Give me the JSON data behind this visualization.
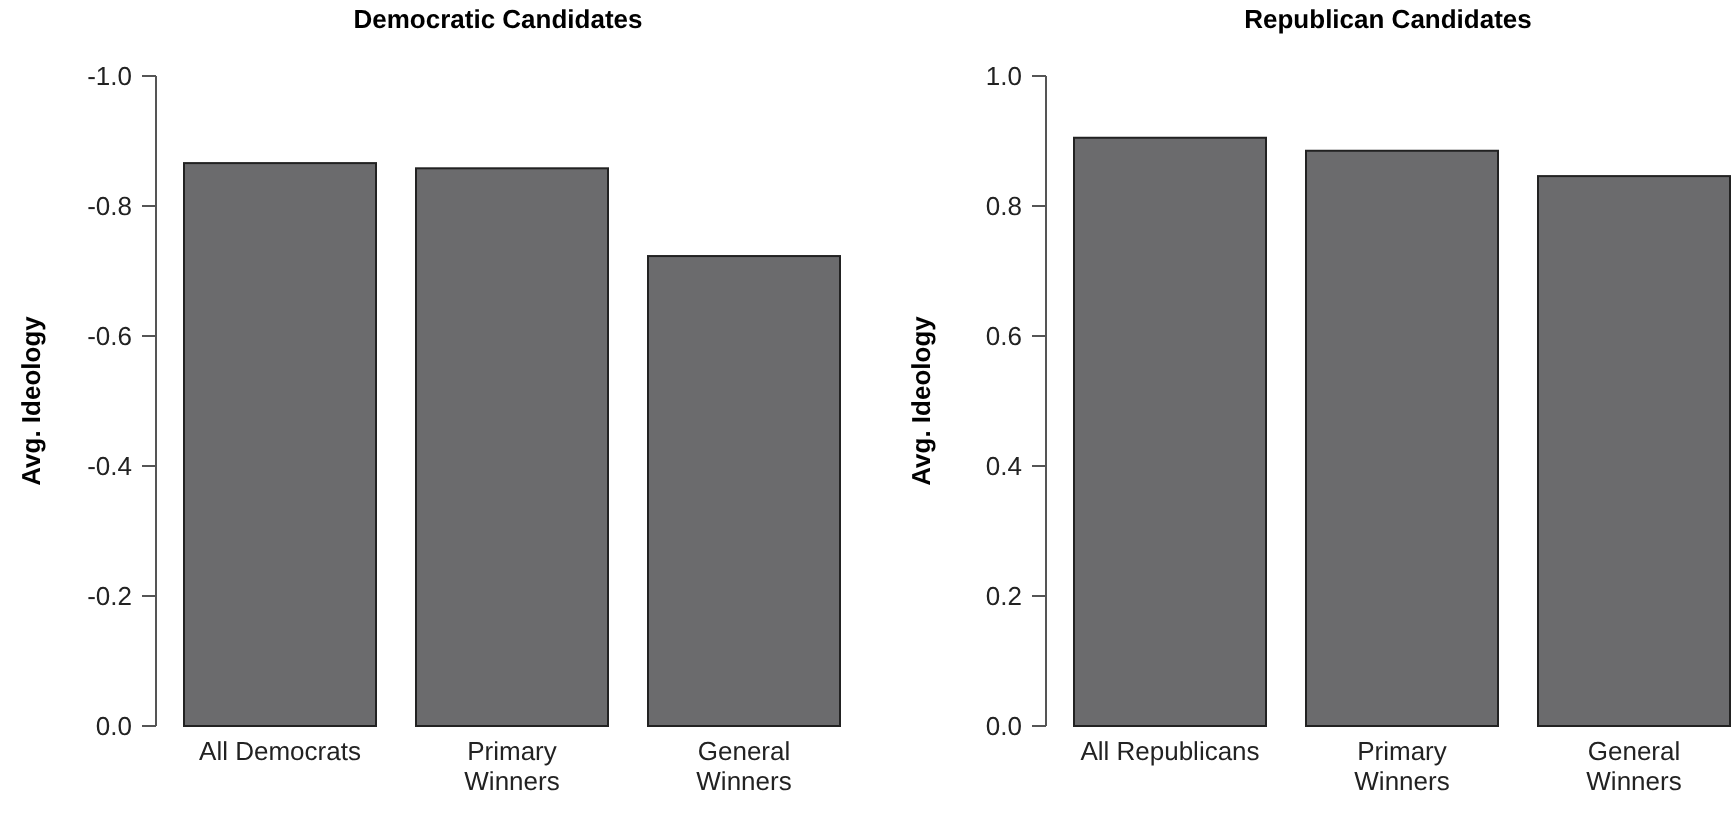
{
  "chart_data": [
    {
      "type": "bar",
      "title": "Democratic Candidates",
      "ylabel": "Avg. Ideology",
      "categories": [
        "All Democrats",
        "Primary\nWinners",
        "General\nWinners"
      ],
      "values": [
        -0.866,
        -0.858,
        -0.723
      ],
      "color": "#6b6b6d",
      "ylim": [
        0,
        -1.0
      ],
      "yticks": [
        {
          "value": 0,
          "label": "0.0"
        },
        -0.2,
        -0.4,
        -0.6,
        -0.8,
        {
          "value": -1.0,
          "label": "-1.0"
        }
      ],
      "grid": false
    },
    {
      "type": "bar",
      "title": "Republican Candidates",
      "ylabel": "Avg. Ideology",
      "categories": [
        "All Republicans",
        "Primary\nWinners",
        "General\nWinners"
      ],
      "values": [
        0.905,
        0.885,
        0.846
      ],
      "color": "#6b6b6d",
      "ylim": [
        0,
        1.0
      ],
      "yticks": [
        {
          "value": 0,
          "label": "0.0"
        },
        0.2,
        0.4,
        0.6,
        0.8,
        {
          "value": 1.0,
          "label": "1.0"
        }
      ],
      "grid": false
    }
  ]
}
